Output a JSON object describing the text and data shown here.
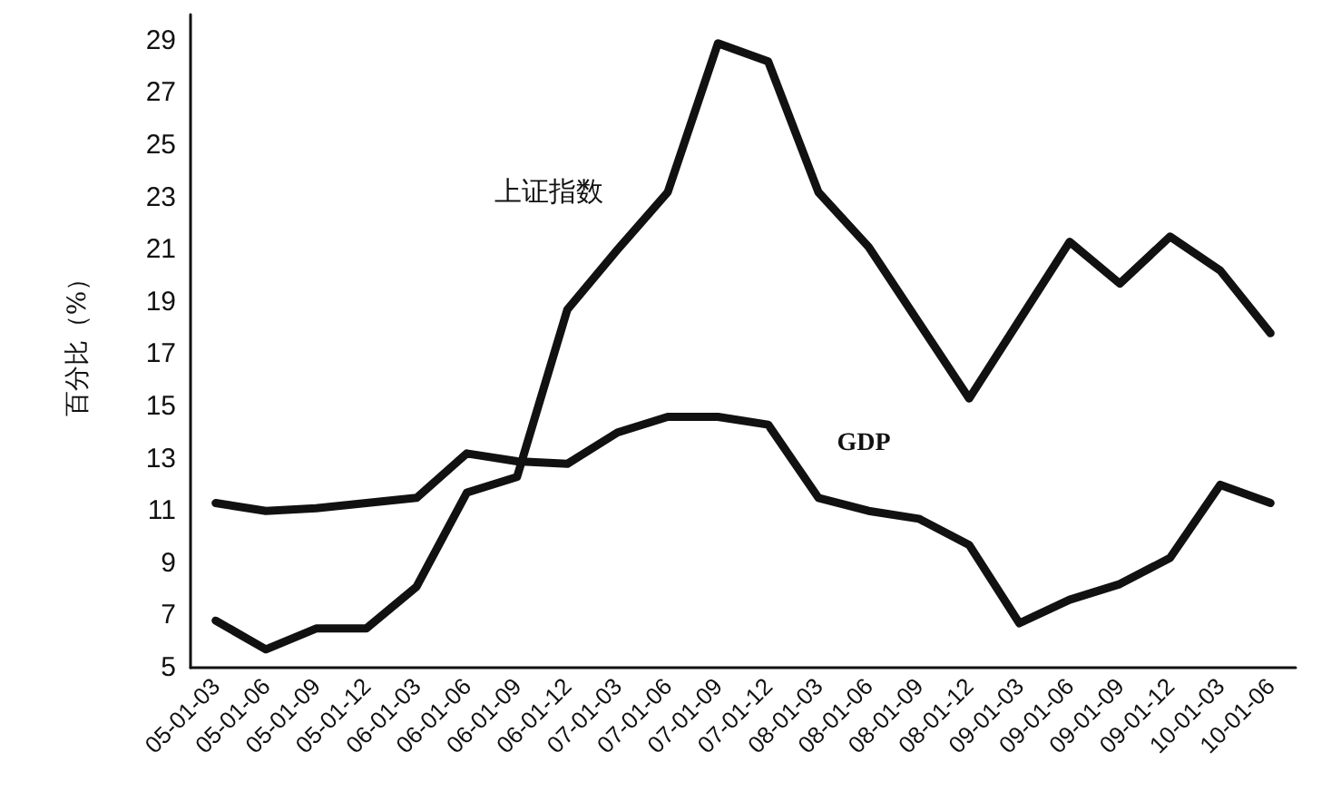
{
  "chart_data": {
    "type": "line",
    "ylabel": "百分比（%）",
    "categories": [
      "05-01-03",
      "05-01-06",
      "05-01-09",
      "05-01-12",
      "06-01-03",
      "06-01-06",
      "06-01-09",
      "06-01-12",
      "07-01-03",
      "07-01-06",
      "07-01-09",
      "07-01-12",
      "08-01-03",
      "08-01-06",
      "08-01-09",
      "08-01-12",
      "09-01-03",
      "09-01-06",
      "09-01-09",
      "09-01-12",
      "10-01-03",
      "10-01-06"
    ],
    "series": [
      {
        "name": "上证指数",
        "color": "#111111",
        "values": [
          6.8,
          5.7,
          6.5,
          6.5,
          8.1,
          11.7,
          12.3,
          18.7,
          21.0,
          23.2,
          28.9,
          28.2,
          23.2,
          21.1,
          18.2,
          15.3,
          18.3,
          21.3,
          19.7,
          21.5,
          20.2,
          17.8
        ]
      },
      {
        "name": "GDP",
        "color": "#111111",
        "values": [
          11.3,
          11.0,
          11.1,
          11.3,
          11.5,
          13.2,
          12.9,
          12.8,
          14.0,
          14.6,
          14.6,
          14.3,
          11.5,
          11.0,
          10.7,
          9.7,
          6.7,
          7.6,
          8.2,
          9.2,
          12.0,
          11.3
        ]
      }
    ],
    "ylim": [
      5,
      30
    ],
    "yticks": [
      5,
      7,
      9,
      11,
      13,
      15,
      17,
      19,
      21,
      23,
      25,
      27,
      29
    ],
    "grid": false,
    "legend": false,
    "marker": "none",
    "line_style": "solid"
  }
}
